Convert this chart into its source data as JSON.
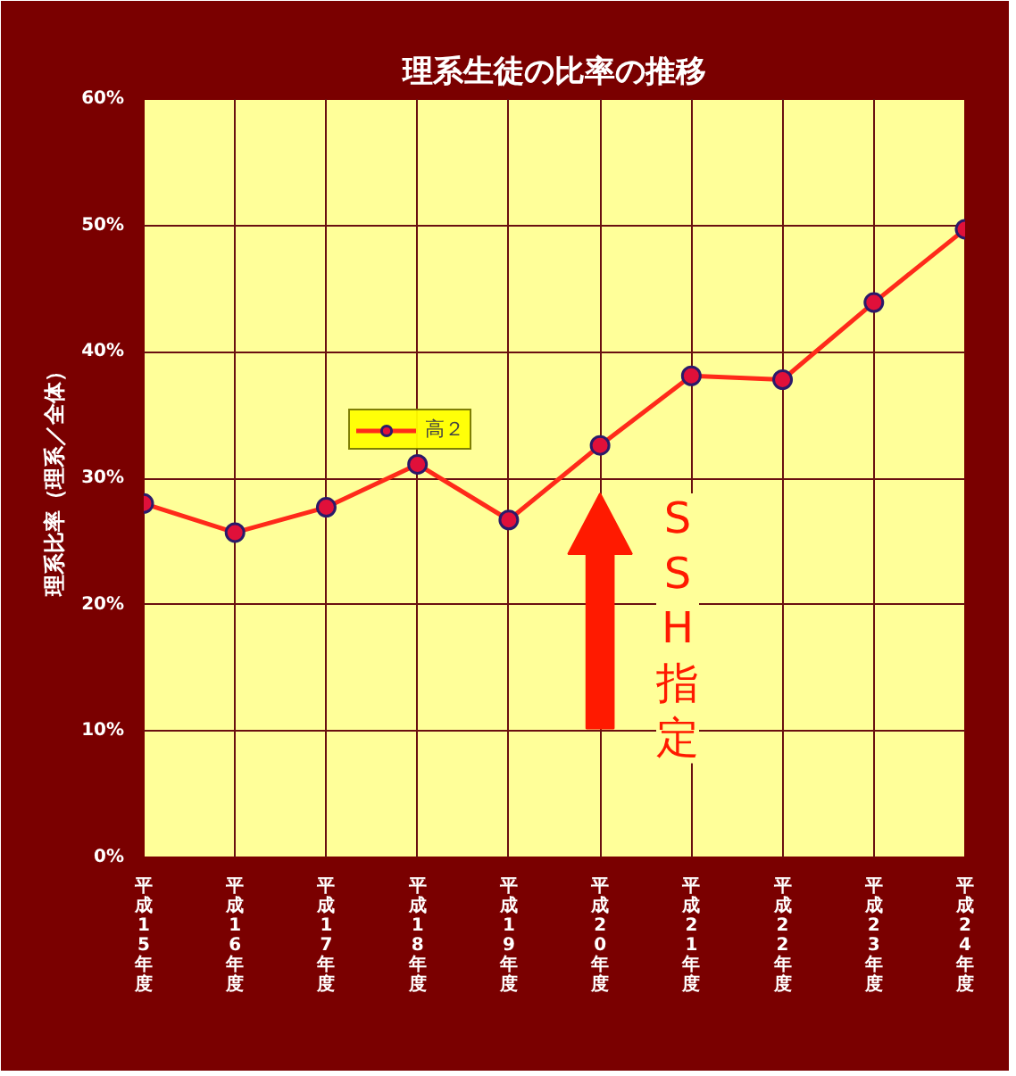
{
  "chart_data": {
    "type": "line",
    "title": "理系生徒の比率の推移",
    "ylabel": "理系比率（理系／全体）",
    "categories": [
      "平成15年度",
      "平成16年度",
      "平成17年度",
      "平成18年度",
      "平成19年度",
      "平成20年度",
      "平成21年度",
      "平成22年度",
      "平成23年度",
      "平成24年度"
    ],
    "series": [
      {
        "name": "高２",
        "color": "#ff2a1a",
        "values": [
          28.0,
          25.7,
          27.7,
          31.1,
          26.7,
          32.6,
          38.1,
          37.8,
          43.9,
          49.7
        ]
      }
    ],
    "ylim": [
      0,
      60
    ],
    "yticks": [
      {
        "value": 0,
        "label": "0%"
      },
      {
        "value": 10,
        "label": "10%"
      },
      {
        "value": 20,
        "label": "20%"
      },
      {
        "value": 30,
        "label": "30%"
      },
      {
        "value": 40,
        "label": "40%"
      },
      {
        "value": 50,
        "label": "50%"
      },
      {
        "value": 60,
        "label": "60%"
      }
    ],
    "annotations": [
      "SSH指定"
    ],
    "grid": true,
    "legend": "center",
    "marker": "circle",
    "line_style": "solid"
  }
}
